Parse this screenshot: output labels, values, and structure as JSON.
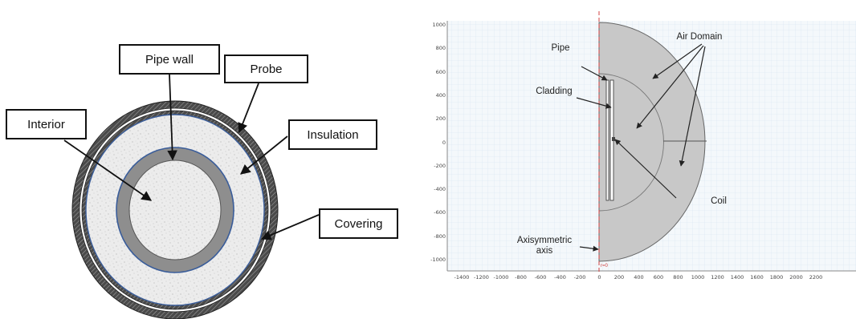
{
  "left_diagram": {
    "labels": {
      "pipe_wall": "Pipe wall",
      "probe": "Probe",
      "interior": "Interior",
      "insulation": "Insulation",
      "covering": "Covering"
    }
  },
  "right_diagram": {
    "labels": {
      "pipe": "Pipe",
      "cladding": "Cladding",
      "air_domain": "Air Domain",
      "coil": "Coil",
      "axis_line1": "Axisymmetric",
      "axis_line2": "axis",
      "origin_marker": "r=0"
    },
    "y_ticks": [
      "1000",
      "800",
      "600",
      "400",
      "200",
      "0",
      "-200",
      "-400",
      "-600",
      "-800",
      "-1000"
    ],
    "x_ticks": [
      "-1400",
      "-1200",
      "-1000",
      "-800",
      "-600",
      "-400",
      "-200",
      "0",
      "200",
      "400",
      "600",
      "800",
      "1000",
      "1200",
      "1400",
      "1600",
      "1800",
      "2000",
      "2200"
    ],
    "colors": {
      "grid": "#cfe0ee",
      "background": "#f3f7fb",
      "domain_fill": "#c6c6c6",
      "axis_red": "#d04040"
    }
  }
}
